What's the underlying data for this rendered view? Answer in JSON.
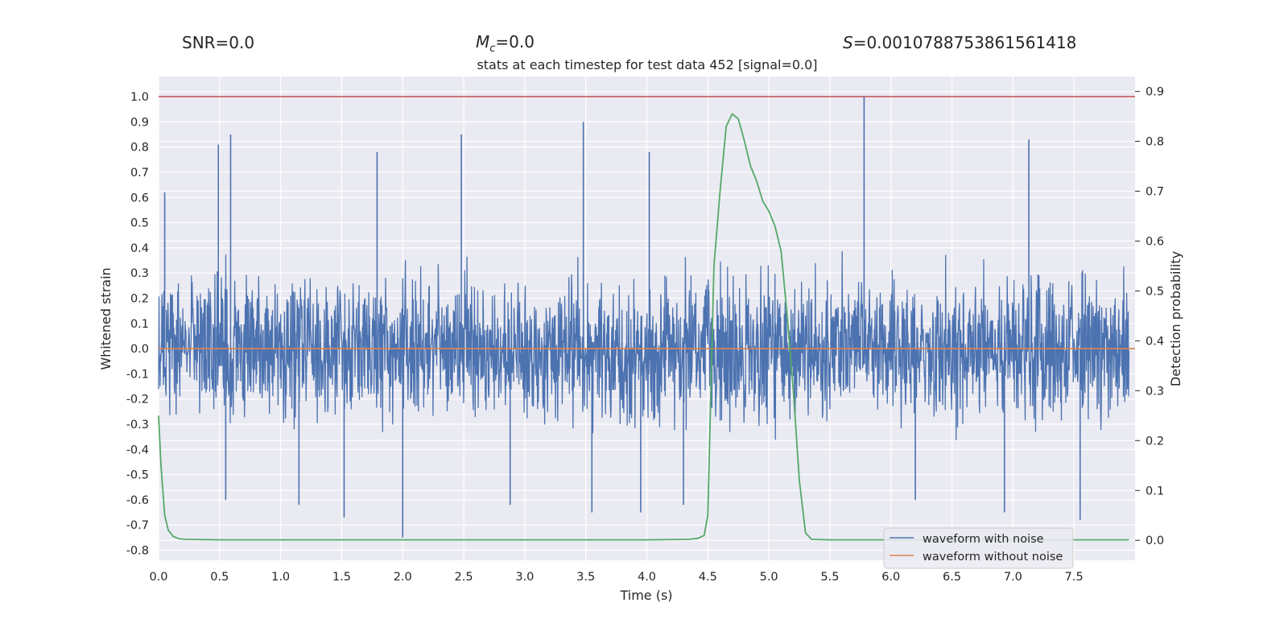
{
  "chart_data": {
    "type": "line",
    "title": "stats at each timestep for test data 452 [signal=0.0]",
    "stats": {
      "snr_label": "SNR=0.0",
      "mc_symbol": "M",
      "mc_sub": "c",
      "mc_value": "=0.0",
      "s_symbol": "S",
      "s_value": "=0.0010788753861561418"
    },
    "xlabel": "Time (s)",
    "ylabel": "Whitened strain",
    "y2label": "Detection probability",
    "xlim": [
      0.0,
      8.0
    ],
    "ylim": [
      -0.84,
      1.08
    ],
    "y2lim": [
      -0.04,
      0.93
    ],
    "x_ticks": [
      "0.0",
      "0.5",
      "1.0",
      "1.5",
      "2.0",
      "2.5",
      "3.0",
      "3.5",
      "4.0",
      "4.5",
      "5.0",
      "5.5",
      "6.0",
      "6.5",
      "7.0",
      "7.5"
    ],
    "y_ticks": [
      "1.0",
      "0.9",
      "0.8",
      "0.7",
      "0.6",
      "0.5",
      "0.4",
      "0.3",
      "0.2",
      "0.1",
      "0.0",
      "-0.1",
      "-0.2",
      "-0.3",
      "-0.4",
      "-0.5",
      "-0.6",
      "-0.7",
      "-0.8"
    ],
    "y2_ticks": [
      "0.9",
      "0.8",
      "0.7",
      "0.6",
      "0.5",
      "0.4",
      "0.3",
      "0.2",
      "0.1",
      "0.0"
    ],
    "threshold": {
      "value": 1.0,
      "color": "#c44e52"
    },
    "series": [
      {
        "name": "waveform with noise",
        "color": "#4c72b0",
        "axis": "left",
        "description": "whitened noise, typical envelope +/-0.3, spikes to +1.0 and -0.75",
        "spikes": [
          [
            0.05,
            0.62
          ],
          [
            0.49,
            0.81
          ],
          [
            0.59,
            0.85
          ],
          [
            0.55,
            -0.6
          ],
          [
            1.15,
            -0.62
          ],
          [
            1.52,
            -0.67
          ],
          [
            1.79,
            0.78
          ],
          [
            2.0,
            -0.75
          ],
          [
            2.48,
            0.85
          ],
          [
            3.48,
            0.9
          ],
          [
            3.55,
            -0.65
          ],
          [
            3.95,
            -0.65
          ],
          [
            4.02,
            0.78
          ],
          [
            5.78,
            1.0
          ],
          [
            6.93,
            -0.65
          ],
          [
            7.13,
            0.83
          ],
          [
            7.55,
            -0.68
          ],
          [
            2.88,
            -0.62
          ],
          [
            6.2,
            -0.6
          ],
          [
            4.3,
            -0.62
          ]
        ]
      },
      {
        "name": "waveform without noise",
        "color": "#dd8452",
        "axis": "left",
        "x": [
          0.0,
          8.0
        ],
        "y": [
          0.0,
          0.0
        ]
      },
      {
        "name": "detection probability",
        "color": "#55a868",
        "axis": "right",
        "x": [
          0.0,
          0.02,
          0.05,
          0.08,
          0.12,
          0.17,
          0.22,
          0.5,
          1.0,
          2.0,
          3.0,
          4.0,
          4.35,
          4.42,
          4.47,
          4.5,
          4.52,
          4.55,
          4.6,
          4.65,
          4.7,
          4.75,
          4.8,
          4.85,
          4.9,
          4.95,
          5.0,
          5.05,
          5.1,
          5.15,
          5.2,
          5.25,
          5.3,
          5.35,
          5.5,
          6.0,
          7.0,
          7.5,
          7.95
        ],
        "y": [
          0.25,
          0.15,
          0.05,
          0.02,
          0.008,
          0.003,
          0.002,
          0.001,
          0.001,
          0.001,
          0.001,
          0.001,
          0.002,
          0.004,
          0.01,
          0.05,
          0.25,
          0.55,
          0.7,
          0.83,
          0.855,
          0.845,
          0.8,
          0.75,
          0.72,
          0.68,
          0.66,
          0.63,
          0.58,
          0.45,
          0.3,
          0.12,
          0.015,
          0.002,
          0.001,
          0.001,
          0.001,
          0.001,
          0.001
        ]
      }
    ],
    "legend": {
      "placement": "lower-right",
      "entries": [
        {
          "label": "waveform with noise",
          "color": "#4c72b0"
        },
        {
          "label": "waveform without noise",
          "color": "#dd8452"
        }
      ]
    },
    "style": {
      "plot_bg": "#eaeaf2",
      "grid_color": "#ffffff",
      "text_color": "#262626"
    }
  }
}
